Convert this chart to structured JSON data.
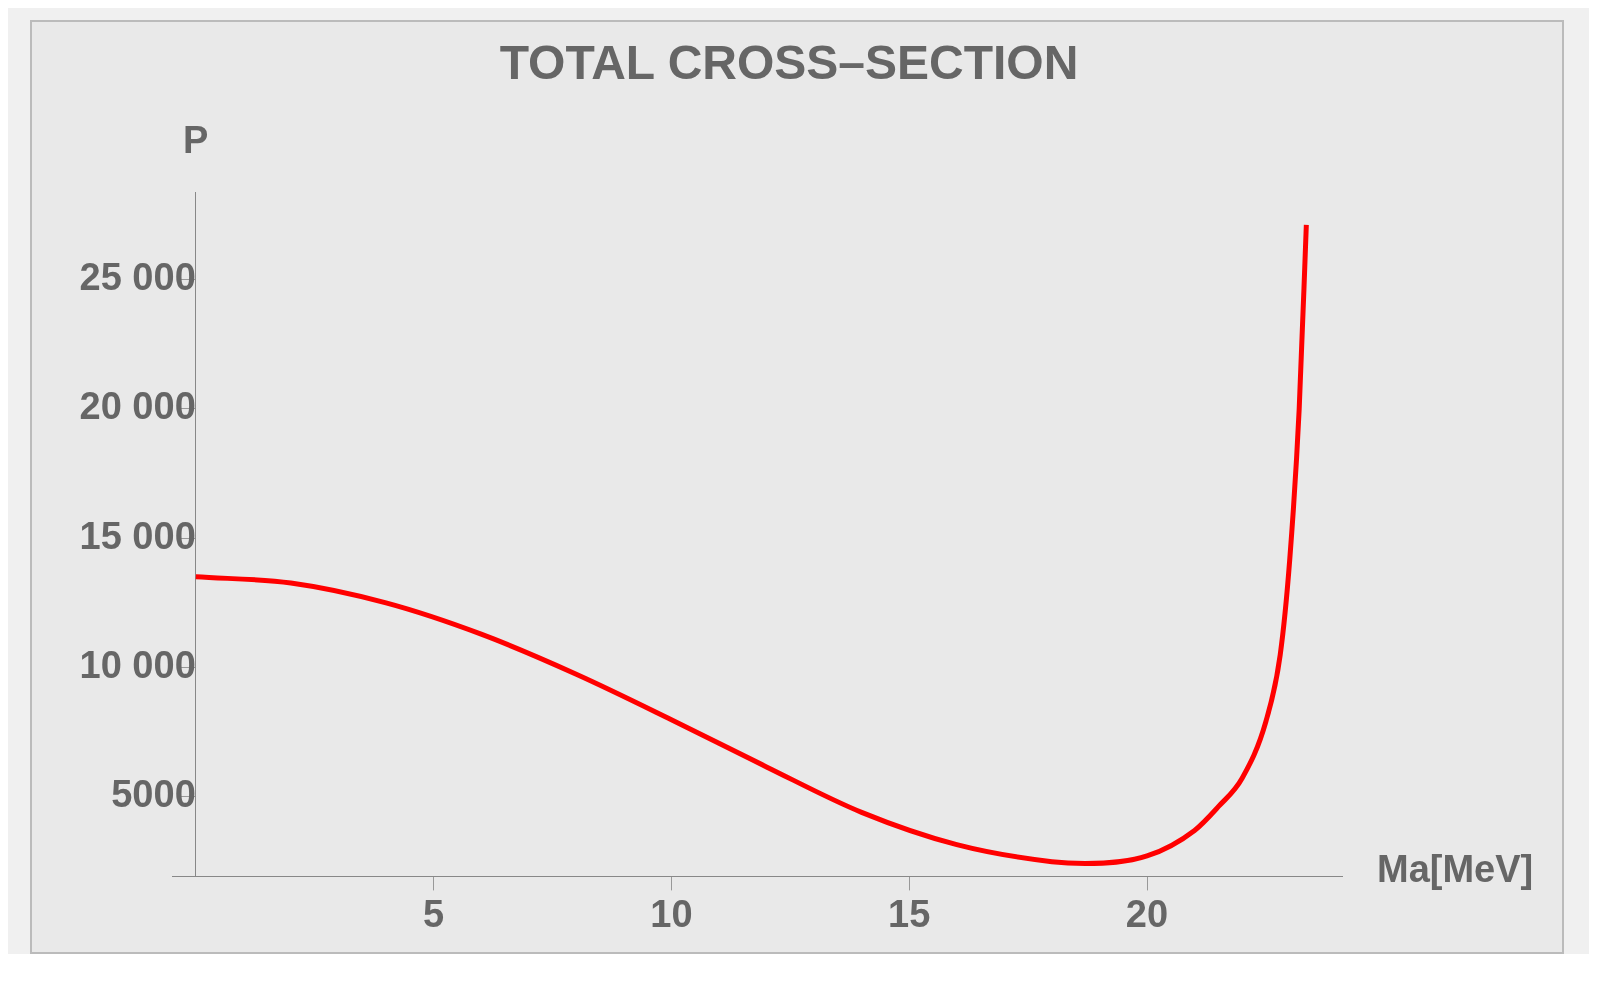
{
  "chart_data": {
    "type": "line",
    "title": "TOTAL CROSS–SECTION",
    "xlabel": "Ma[MeV]",
    "ylabel": "P",
    "x": [
      0,
      2,
      4,
      6,
      8,
      10,
      12,
      14,
      16,
      18,
      18.7,
      20,
      21,
      21.5,
      22,
      22.5,
      22.8,
      23,
      23.2,
      23.35
    ],
    "series": [
      {
        "color": "#ff0000",
        "values": [
          13500,
          13260,
          12490,
          11280,
          9730,
          7970,
          6140,
          4380,
          3130,
          2470,
          2400,
          2690,
          3680,
          4600,
          5700,
          7900,
          10470,
          14140,
          20000,
          27130
        ]
      }
    ],
    "xlim": [
      -0.5,
      24.1
    ],
    "ylim": [
      1900,
      28400
    ],
    "xticks": [
      5,
      10,
      15,
      20
    ],
    "yticks": [
      {
        "value": 5000,
        "label": "5000"
      },
      {
        "value": 10000,
        "label": "10 000"
      },
      {
        "value": 15000,
        "label": "15 000"
      },
      {
        "value": 20000,
        "label": "20 000"
      },
      {
        "value": 25000,
        "label": "25 000"
      }
    ],
    "grid": false,
    "legend": false,
    "marker": "none",
    "line_style": "solid"
  }
}
